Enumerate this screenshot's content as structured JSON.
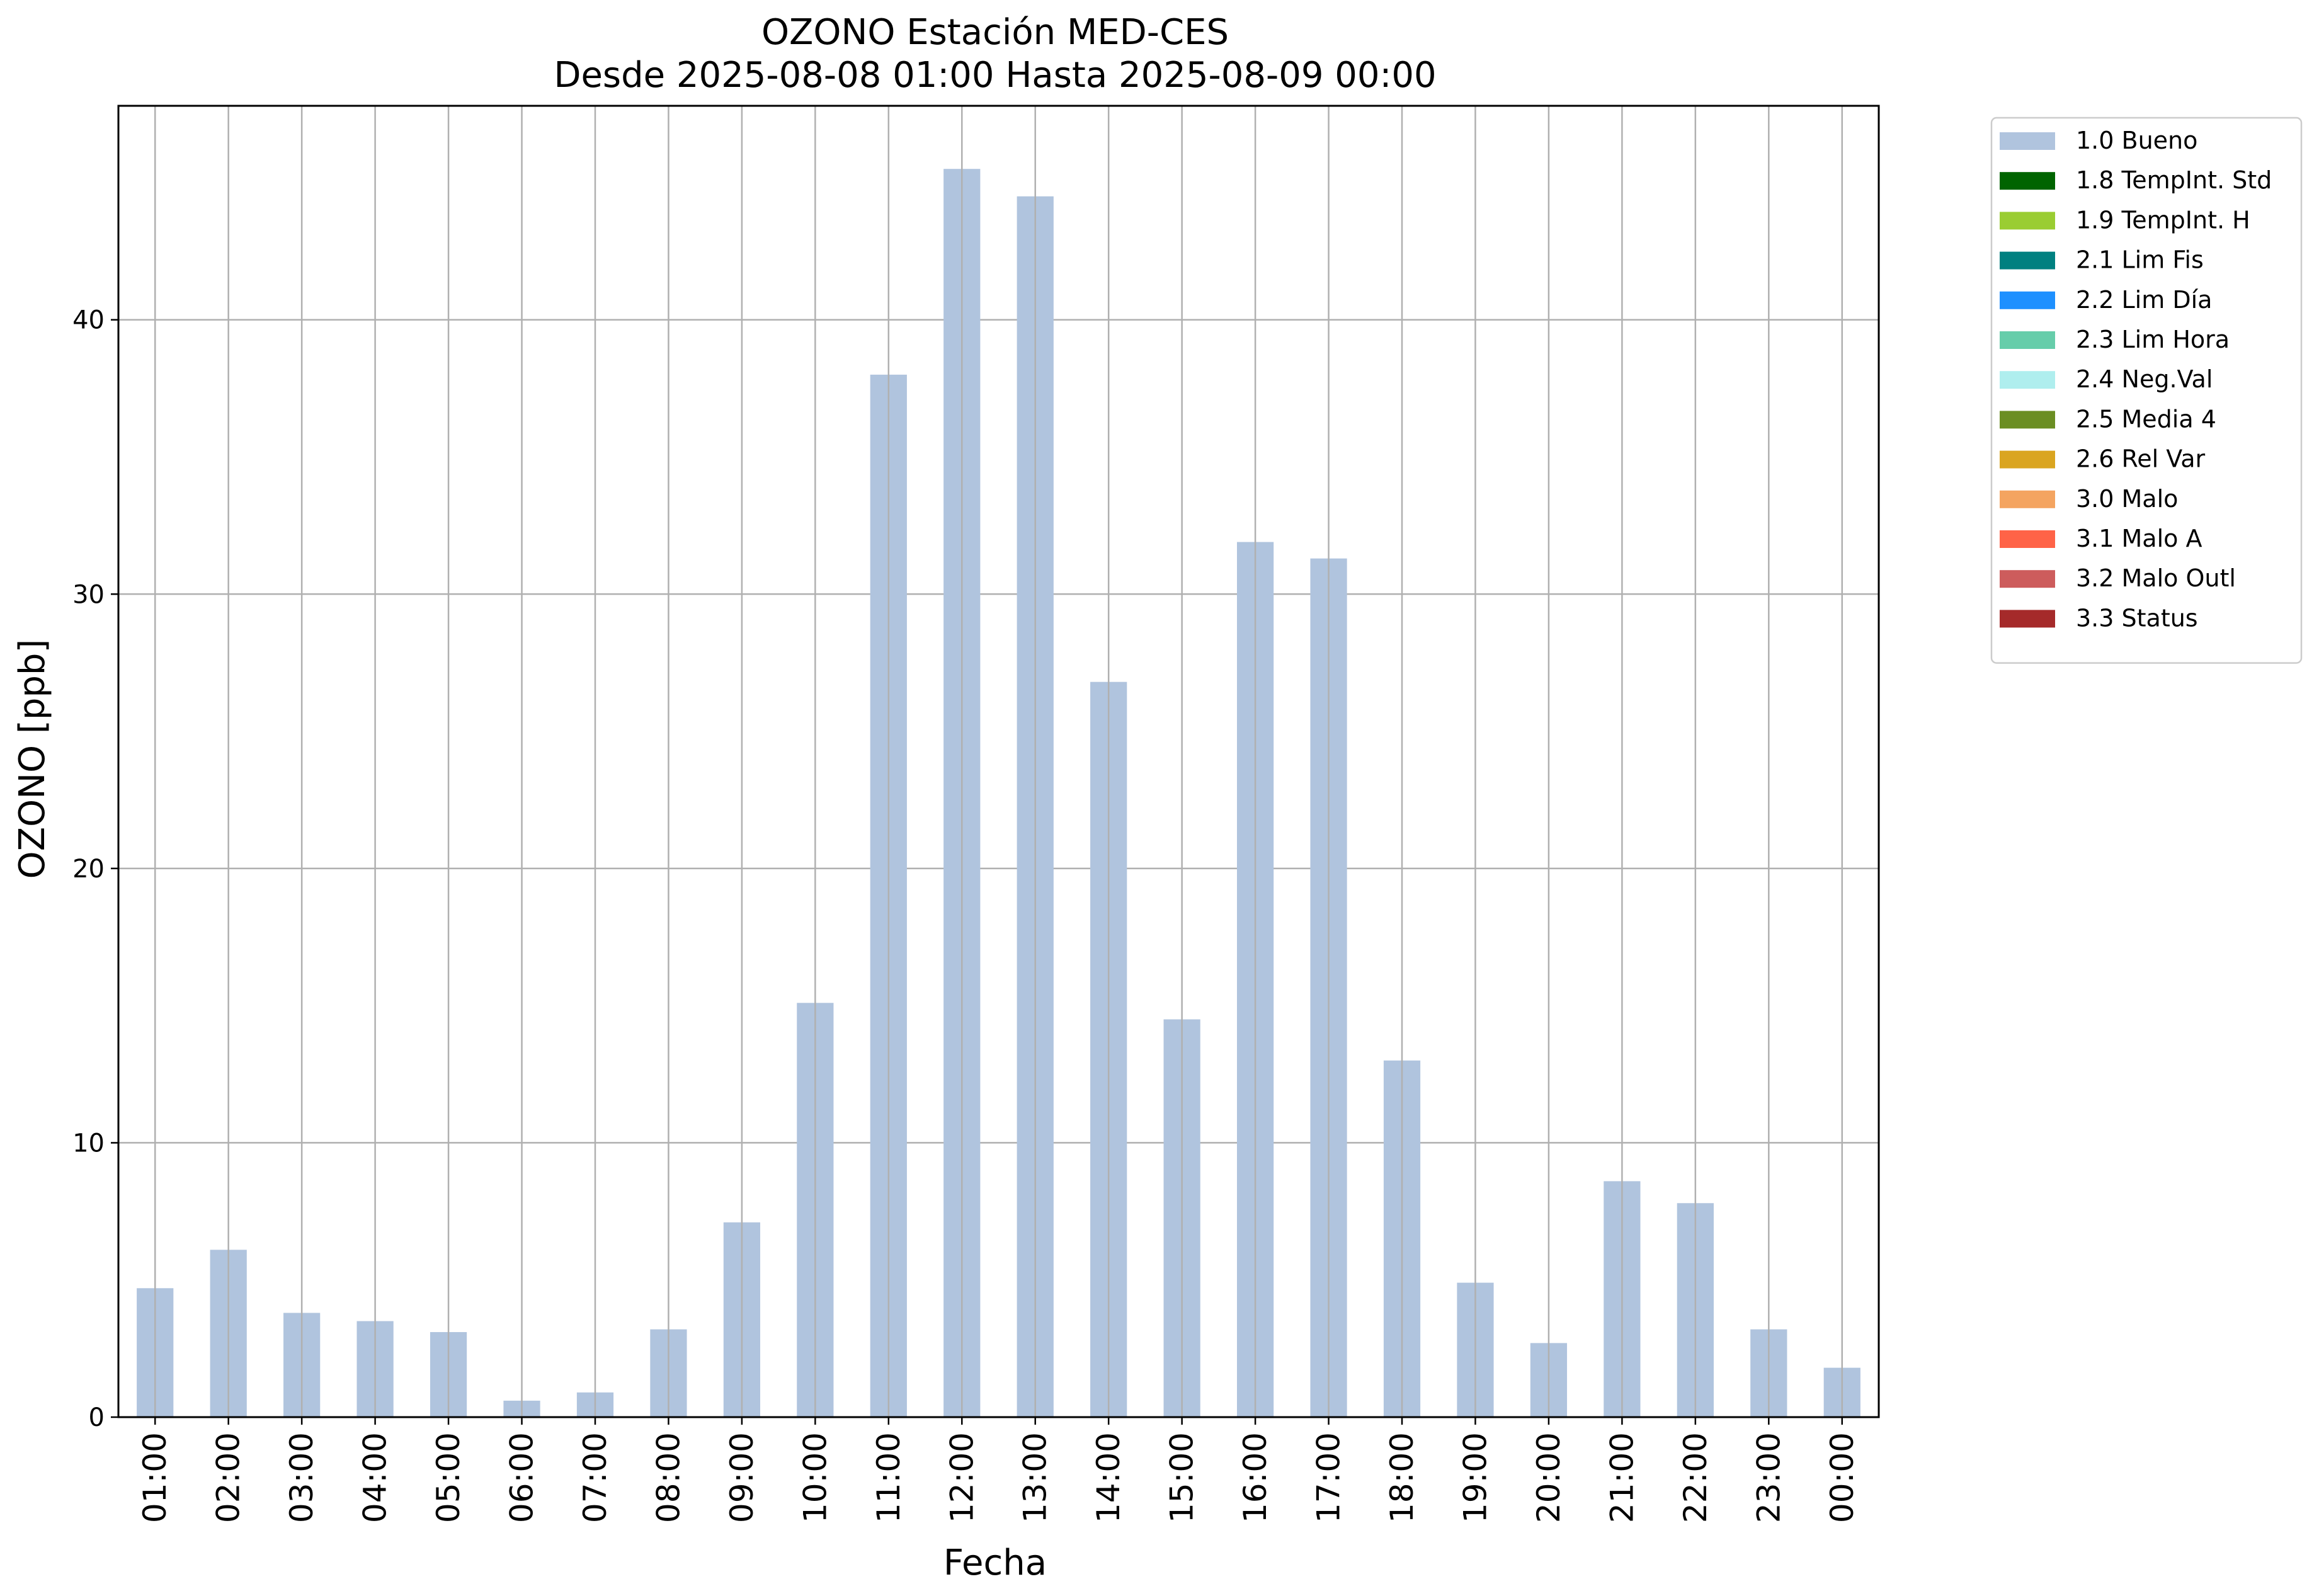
{
  "chart_data": {
    "type": "bar",
    "title_line1": "OZONO Estación MED-CES",
    "title_line2": "Desde 2025-08-08 01:00 Hasta 2025-08-09 00:00",
    "xlabel": "Fecha",
    "ylabel": "OZONO [ppb]",
    "ylim": [
      0,
      47.8
    ],
    "yticks": [
      "0",
      "10",
      "20",
      "30",
      "40"
    ],
    "grid": true,
    "legend_position": "outside-right",
    "categories": [
      "01:00",
      "02:00",
      "03:00",
      "04:00",
      "05:00",
      "06:00",
      "07:00",
      "08:00",
      "09:00",
      "10:00",
      "11:00",
      "12:00",
      "13:00",
      "14:00",
      "15:00",
      "16:00",
      "17:00",
      "18:00",
      "19:00",
      "20:00",
      "21:00",
      "22:00",
      "23:00",
      "00:00"
    ],
    "series": [
      {
        "name": "1.0 Bueno",
        "color": "#b0c4de",
        "values": [
          4.7,
          6.1,
          3.8,
          3.5,
          3.1,
          0.6,
          0.9,
          3.2,
          7.1,
          15.1,
          38.0,
          45.5,
          44.5,
          26.8,
          14.5,
          31.9,
          31.3,
          13.0,
          4.9,
          2.7,
          8.6,
          7.8,
          3.2,
          1.8
        ]
      }
    ],
    "legend": [
      {
        "label": "1.0 Bueno",
        "color": "#b0c4de"
      },
      {
        "label": "1.8 TempInt. Std",
        "color": "#006400"
      },
      {
        "label": "1.9 TempInt. H",
        "color": "#9acd32"
      },
      {
        "label": "2.1 Lim Fis",
        "color": "#008080"
      },
      {
        "label": "2.2 Lim Día",
        "color": "#1e90ff"
      },
      {
        "label": "2.3 Lim Hora",
        "color": "#66cdaa"
      },
      {
        "label": "2.4 Neg.Val",
        "color": "#afeeee"
      },
      {
        "label": "2.5 Media 4",
        "color": "#6b8e23"
      },
      {
        "label": "2.6 Rel Var",
        "color": "#daa520"
      },
      {
        "label": "3.0 Malo",
        "color": "#f4a460"
      },
      {
        "label": "3.1 Malo A",
        "color": "#ff6347"
      },
      {
        "label": "3.2 Malo Outl",
        "color": "#cd5c5c"
      },
      {
        "label": "3.3 Status",
        "color": "#a52a2a"
      }
    ]
  }
}
